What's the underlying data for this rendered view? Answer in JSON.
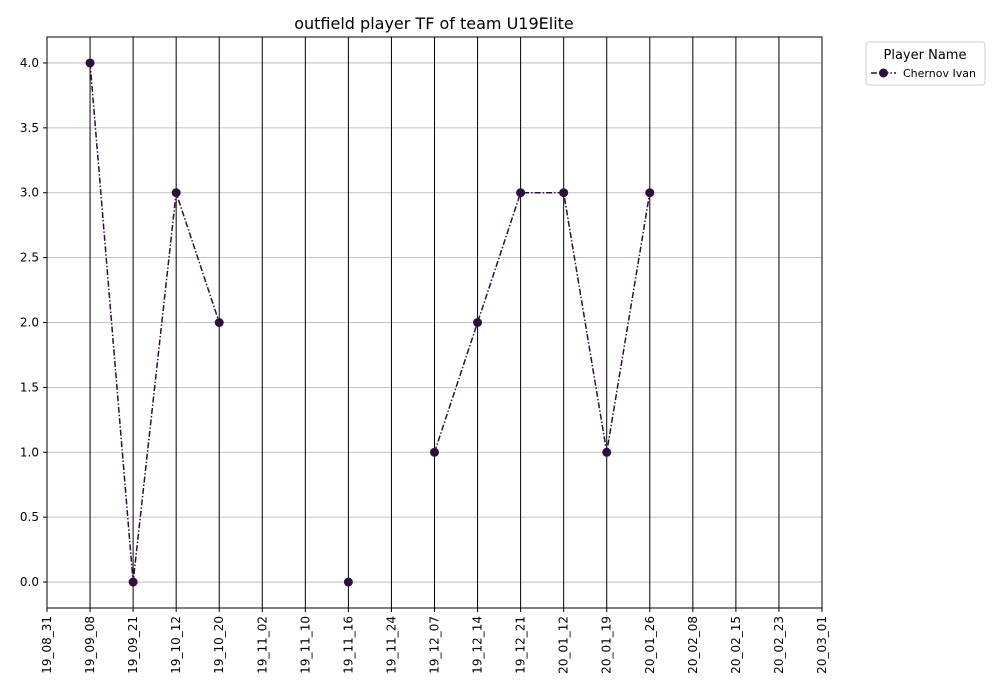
{
  "chart_data": {
    "type": "line",
    "title": "outfield player TF of team U19Elite",
    "xlabel": "",
    "ylabel": "",
    "x_ticks": [
      "19_08_31",
      "19_09_08",
      "19_09_21",
      "19_10_12",
      "19_10_20",
      "19_11_02",
      "19_11_10",
      "19_11_16",
      "19_11_24",
      "19_12_07",
      "19_12_14",
      "19_12_21",
      "20_01_12",
      "20_01_19",
      "20_01_26",
      "20_02_08",
      "20_02_15",
      "20_02_23",
      "20_03_01"
    ],
    "y_ticks": [
      0.0,
      0.5,
      1.0,
      1.5,
      2.0,
      2.5,
      3.0,
      3.5,
      4.0
    ],
    "y_tick_labels": [
      "0.0",
      "0.5",
      "1.0",
      "1.5",
      "2.0",
      "2.5",
      "3.0",
      "3.5",
      "4.0"
    ],
    "ylim": [
      -0.2,
      4.2
    ],
    "grid": {
      "y": true,
      "x": "vertical black lines at each date"
    },
    "legend": {
      "title": "Player Name",
      "placement": "outside top-right"
    },
    "series": [
      {
        "name": "Chernov Ivan",
        "color": "#2d0f3c",
        "line_style": "dash-dot",
        "marker": "circle",
        "points": [
          {
            "x": "19_09_08",
            "y": 4
          },
          {
            "x": "19_09_21",
            "y": 0
          },
          {
            "x": "19_10_12",
            "y": 3
          },
          {
            "x": "19_10_20",
            "y": 2
          },
          {
            "x": "19_11_16",
            "y": 0
          },
          {
            "x": "19_12_07",
            "y": 1
          },
          {
            "x": "19_12_14",
            "y": 2
          },
          {
            "x": "19_12_21",
            "y": 3
          },
          {
            "x": "20_01_12",
            "y": 3
          },
          {
            "x": "20_01_19",
            "y": 1
          },
          {
            "x": "20_01_26",
            "y": 3
          }
        ],
        "segments": [
          [
            "19_09_08",
            "19_09_21",
            "19_10_12",
            "19_10_20"
          ],
          [
            "19_11_16"
          ],
          [
            "19_12_07",
            "19_12_14",
            "19_12_21",
            "20_01_12",
            "20_01_19",
            "20_01_26"
          ]
        ]
      }
    ]
  }
}
